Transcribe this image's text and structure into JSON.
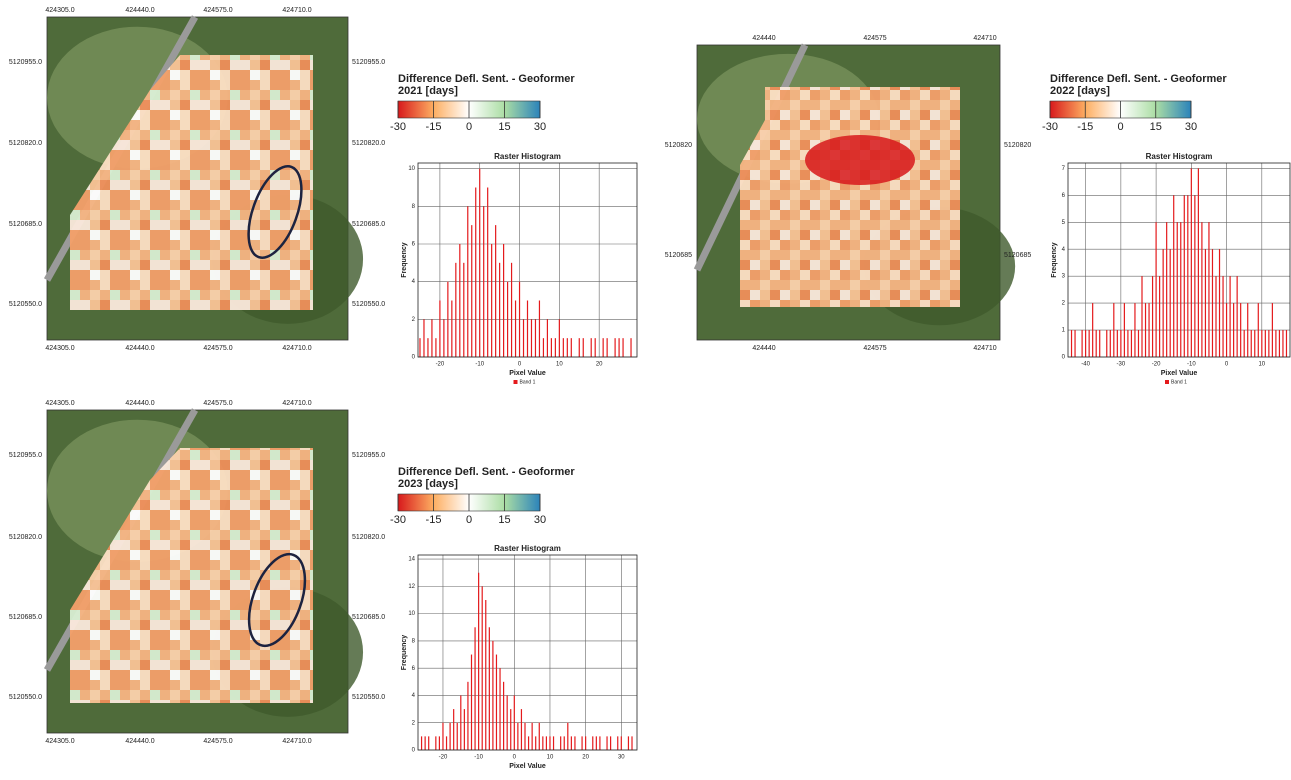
{
  "panels": [
    {
      "map": {
        "x_labels": [
          "424305.0",
          "424440.0",
          "424575.0",
          "424710.0"
        ],
        "y_labels": [
          "5120955.0",
          "5120820.0",
          "5120685.0",
          "5120550.0"
        ]
      },
      "legend": {
        "title": "Difference Defl. Sent. - Geoformer",
        "subtitle": "2021 [days]",
        "clim": [
          -30,
          30
        ],
        "ticks": [
          -30,
          -15,
          0,
          15,
          30
        ],
        "colors": [
          "#d7191c",
          "#fdae61",
          "#ffffff",
          "#abdda4",
          "#2b83ba"
        ]
      },
      "histogram": {
        "type": "histogram",
        "title": "Raster Histogram",
        "xlabel": "Pixel Value",
        "ylabel": "Frequency",
        "legend": "Band 1",
        "color": "#e41a1c",
        "xlim": [
          -25.5,
          29.5
        ],
        "ylim": [
          0,
          10.3
        ],
        "xticks": [
          -20,
          -10,
          0,
          10,
          20
        ],
        "yticks": [
          0,
          2,
          4,
          6,
          8,
          10
        ],
        "x": [
          -25,
          -24,
          -23,
          -22,
          -21,
          -20,
          -19,
          -18,
          -17,
          -16,
          -15,
          -14,
          -13,
          -12,
          -11,
          -10,
          -9,
          -8,
          -7,
          -6,
          -5,
          -4,
          -3,
          -2,
          -1,
          0,
          1,
          2,
          3,
          4,
          5,
          6,
          7,
          8,
          9,
          10,
          11,
          12,
          13,
          14,
          15,
          16,
          17,
          18,
          19,
          20,
          21,
          22,
          23,
          24,
          25,
          26,
          27,
          28
        ],
        "counts": [
          1,
          2,
          1,
          2,
          1,
          3,
          2,
          4,
          3,
          5,
          6,
          5,
          8,
          7,
          9,
          10,
          8,
          9,
          6,
          7,
          5,
          6,
          4,
          5,
          3,
          4,
          2,
          3,
          2,
          2,
          3,
          1,
          2,
          1,
          1,
          2,
          1,
          1,
          1,
          0,
          1,
          1,
          0,
          1,
          1,
          0,
          1,
          1,
          0,
          1,
          1,
          1,
          0,
          1
        ]
      }
    },
    {
      "map": {
        "x_labels": [
          "424440",
          "424575",
          "424710"
        ],
        "y_labels": [
          "5120820",
          "5120685"
        ]
      },
      "legend": {
        "title": "Difference Defl. Sent. - Geoformer",
        "subtitle": "2022 [days]",
        "clim": [
          -30,
          30
        ],
        "ticks": [
          -30,
          -15,
          0,
          15,
          30
        ],
        "colors": [
          "#d7191c",
          "#fdae61",
          "#ffffff",
          "#abdda4",
          "#2b83ba"
        ]
      },
      "histogram": {
        "type": "histogram",
        "title": "Raster Histogram",
        "xlabel": "Pixel Value",
        "ylabel": "Frequency",
        "legend": "Band 1",
        "color": "#e41a1c",
        "xlim": [
          -45,
          18
        ],
        "ylim": [
          0,
          7.2
        ],
        "xticks": [
          -40,
          -30,
          -20,
          -10,
          0,
          10
        ],
        "yticks": [
          0,
          1,
          2,
          3,
          4,
          5,
          6,
          7
        ],
        "x": [
          -44,
          -43,
          -42,
          -41,
          -40,
          -39,
          -38,
          -37,
          -36,
          -35,
          -34,
          -33,
          -32,
          -31,
          -30,
          -29,
          -28,
          -27,
          -26,
          -25,
          -24,
          -23,
          -22,
          -21,
          -20,
          -19,
          -18,
          -17,
          -16,
          -15,
          -14,
          -13,
          -12,
          -11,
          -10,
          -9,
          -8,
          -7,
          -6,
          -5,
          -4,
          -3,
          -2,
          -1,
          0,
          1,
          2,
          3,
          4,
          5,
          6,
          7,
          8,
          9,
          10,
          11,
          12,
          13,
          14,
          15,
          16,
          17
        ],
        "counts": [
          1,
          1,
          0,
          1,
          1,
          1,
          2,
          1,
          1,
          0,
          1,
          1,
          2,
          1,
          1,
          2,
          1,
          1,
          2,
          1,
          3,
          2,
          2,
          3,
          5,
          3,
          4,
          5,
          4,
          6,
          5,
          5,
          6,
          6,
          7,
          6,
          7,
          5,
          4,
          5,
          4,
          3,
          4,
          3,
          2,
          3,
          2,
          3,
          2,
          1,
          2,
          1,
          1,
          2,
          1,
          1,
          1,
          2,
          1,
          1,
          1,
          1
        ]
      }
    },
    {
      "map": {
        "x_labels": [
          "424305.0",
          "424440.0",
          "424575.0",
          "424710.0"
        ],
        "y_labels": [
          "5120955.0",
          "5120820.0",
          "5120685.0",
          "5120550.0"
        ]
      },
      "legend": {
        "title": "Difference Defl. Sent. - Geoformer",
        "subtitle": "2023 [days]",
        "clim": [
          -30,
          30
        ],
        "ticks": [
          -30,
          -15,
          0,
          15,
          30
        ],
        "colors": [
          "#d7191c",
          "#fdae61",
          "#ffffff",
          "#abdda4",
          "#2b83ba"
        ]
      },
      "histogram": {
        "type": "histogram",
        "title": "Raster Histogram",
        "xlabel": "Pixel Value",
        "ylabel": "Frequency",
        "color": "#e41a1c",
        "xlim": [
          -27,
          34.4
        ],
        "ylim": [
          0,
          14.3
        ],
        "xticks": [
          -20,
          -10,
          0,
          10,
          20,
          30
        ],
        "yticks": [
          0,
          2,
          4,
          6,
          8,
          10,
          12,
          14
        ],
        "x": [
          -26,
          -25,
          -24,
          -23,
          -22,
          -21,
          -20,
          -19,
          -18,
          -17,
          -16,
          -15,
          -14,
          -13,
          -12,
          -11,
          -10,
          -9,
          -8,
          -7,
          -6,
          -5,
          -4,
          -3,
          -2,
          -1,
          0,
          1,
          2,
          3,
          4,
          5,
          6,
          7,
          8,
          9,
          10,
          11,
          12,
          13,
          14,
          15,
          16,
          17,
          18,
          19,
          20,
          21,
          22,
          23,
          24,
          25,
          26,
          27,
          28,
          29,
          30,
          31,
          32,
          33
        ],
        "counts": [
          1,
          1,
          1,
          0,
          1,
          1,
          2,
          1,
          2,
          3,
          2,
          4,
          3,
          5,
          7,
          9,
          13,
          12,
          11,
          9,
          8,
          7,
          6,
          5,
          4,
          3,
          4,
          2,
          3,
          2,
          1,
          2,
          1,
          2,
          1,
          1,
          1,
          1,
          0,
          1,
          1,
          2,
          1,
          1,
          0,
          1,
          1,
          0,
          1,
          1,
          1,
          0,
          1,
          1,
          0,
          1,
          1,
          0,
          1,
          1
        ]
      }
    }
  ]
}
